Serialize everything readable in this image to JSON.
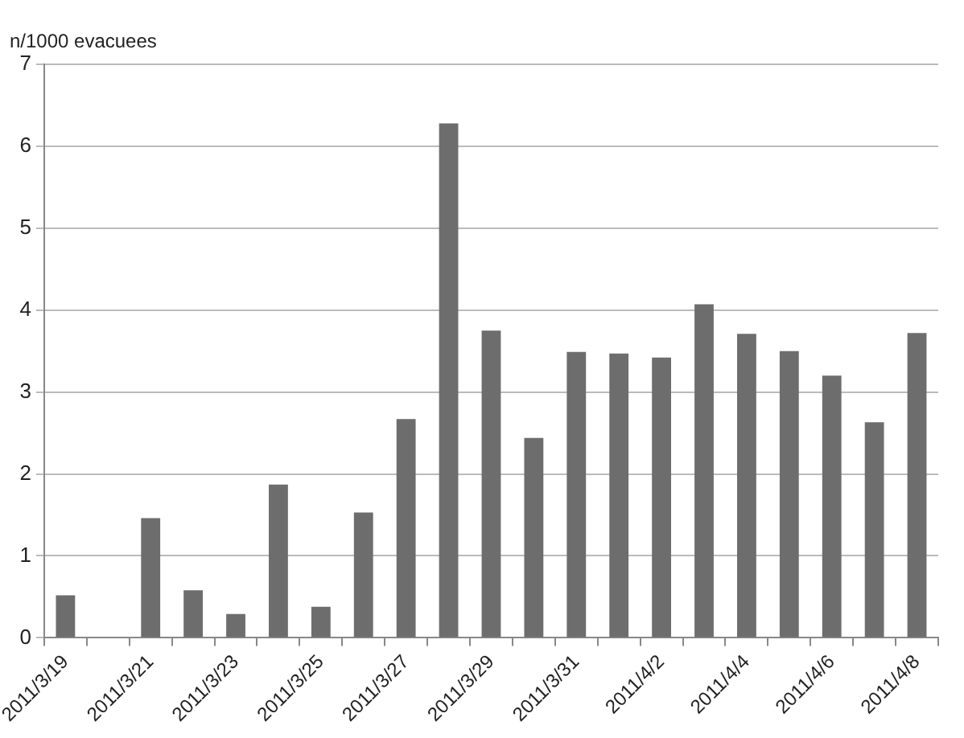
{
  "chart_data": {
    "type": "bar",
    "ylabel": "n/1000 evacuees",
    "categories": [
      "2011/3/19",
      null,
      "2011/3/21",
      null,
      "2011/3/23",
      null,
      "2011/3/25",
      null,
      "2011/3/27",
      null,
      "2011/3/29",
      null,
      "2011/3/31",
      null,
      "2011/4/2",
      null,
      "2011/4/4",
      null,
      "2011/4/6",
      null,
      "2011/4/8"
    ],
    "values": [
      0.52,
      0,
      1.46,
      0.58,
      0.29,
      1.87,
      0.38,
      1.53,
      2.67,
      6.28,
      3.75,
      2.44,
      3.49,
      3.47,
      3.42,
      4.07,
      3.71,
      3.5,
      3.2,
      2.63,
      3.72
    ],
    "color": "#6d6d6d",
    "ylim": [
      0,
      7
    ],
    "yticks": [
      0,
      1,
      2,
      3,
      4,
      5,
      6,
      7
    ],
    "grid": "y",
    "legend": false
  }
}
